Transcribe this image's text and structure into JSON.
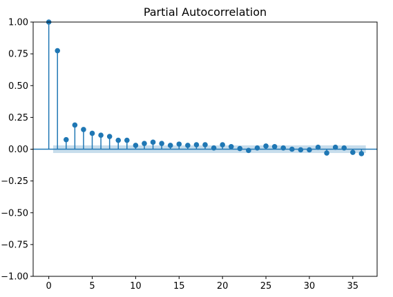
{
  "chart_data": {
    "type": "scatter",
    "style": "stem",
    "title": "Partial Autocorrelation",
    "xlabel": "",
    "ylabel": "",
    "xlim": [
      -1.8,
      37.8
    ],
    "ylim": [
      -1.0,
      1.0
    ],
    "xticks": [
      0,
      5,
      10,
      15,
      20,
      25,
      30,
      35
    ],
    "xtick_labels": [
      "0",
      "5",
      "10",
      "15",
      "20",
      "25",
      "30",
      "35"
    ],
    "yticks": [
      1.0,
      0.75,
      0.5,
      0.25,
      0.0,
      -0.25,
      -0.5,
      -0.75,
      -1.0
    ],
    "ytick_labels": [
      "1.00",
      "0.75",
      "0.50",
      "0.25",
      "0.00",
      "−0.25",
      "−0.50",
      "−0.75",
      "−1.00"
    ],
    "grid": false,
    "series": [
      {
        "x": [
          0,
          1,
          2,
          3,
          4,
          5,
          6,
          7,
          8,
          9,
          10,
          11,
          12,
          13,
          14,
          15,
          16,
          17,
          18,
          19,
          20,
          21,
          22,
          23,
          24,
          25,
          26,
          27,
          28,
          29,
          30,
          31,
          32,
          33,
          34,
          35,
          36
        ],
        "y": [
          1.0,
          0.775,
          0.075,
          0.19,
          0.155,
          0.125,
          0.11,
          0.1,
          0.07,
          0.07,
          0.03,
          0.045,
          0.055,
          0.045,
          0.03,
          0.04,
          0.03,
          0.035,
          0.035,
          0.01,
          0.035,
          0.02,
          0.005,
          -0.01,
          0.01,
          0.025,
          0.02,
          0.01,
          0.0,
          -0.005,
          -0.005,
          0.015,
          -0.03,
          0.015,
          0.01,
          -0.025,
          -0.035
        ]
      }
    ],
    "confidence_band": {
      "x_start": 0.5,
      "x_end": 36.5,
      "upper": 0.03,
      "lower": -0.03
    },
    "colors": {
      "marker": "#1f77b4",
      "band": "#1f77b4"
    }
  }
}
